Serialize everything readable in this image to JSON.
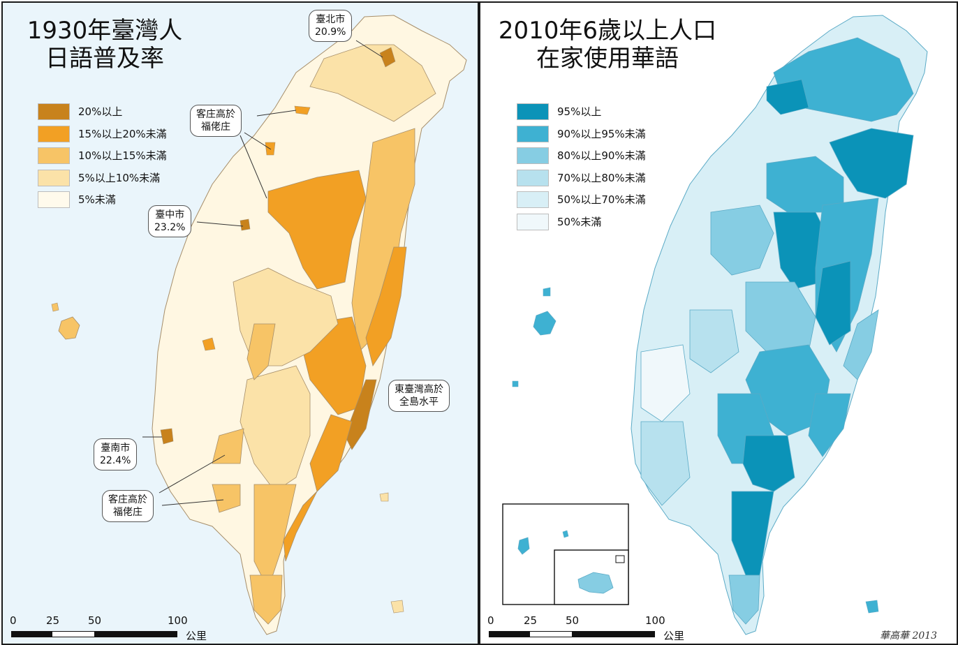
{
  "left_map": {
    "title_line1": "1930年臺灣人",
    "title_line2": "日語普及率",
    "legend": [
      {
        "label": "20%以上",
        "color": "#c8821c"
      },
      {
        "label": "15%以上20%未滿",
        "color": "#f2a024"
      },
      {
        "label": "10%以上15%未滿",
        "color": "#f7c466"
      },
      {
        "label": "5%以上10%未滿",
        "color": "#fbe2a8"
      },
      {
        "label": "5%未滿",
        "color": "#fffaec"
      }
    ],
    "callouts": {
      "taipei_name": "臺北市",
      "taipei_value": "20.9%",
      "hakka_north_line1": "客庄高於",
      "hakka_north_line2": "福佬庄",
      "taichung_name": "臺中市",
      "taichung_value": "23.2%",
      "east_line1": "東臺灣高於",
      "east_line2": "全島水平",
      "tainan_name": "臺南市",
      "tainan_value": "22.4%",
      "hakka_south_line1": "客庄高於",
      "hakka_south_line2": "福佬庄"
    },
    "scale": {
      "tick0": "0",
      "tick25": "25",
      "tick50": "50",
      "tick100": "100",
      "unit": "公里"
    }
  },
  "right_map": {
    "title_line1": "2010年6歲以上人口",
    "title_line2": "在家使用華語",
    "legend": [
      {
        "label": "95%以上",
        "color": "#0b93b8"
      },
      {
        "label": "90%以上95%未滿",
        "color": "#3eb1d2"
      },
      {
        "label": "80%以上90%未滿",
        "color": "#86cde3"
      },
      {
        "label": "70%以上80%未滿",
        "color": "#b7e1ee"
      },
      {
        "label": "50%以上70%未滿",
        "color": "#d8eff6"
      },
      {
        "label": "50%未滿",
        "color": "#f0f8fb"
      }
    ],
    "scale": {
      "tick0": "0",
      "tick25": "25",
      "tick50": "50",
      "tick100": "100",
      "unit": "公里"
    },
    "signature": "華高華 2013"
  }
}
